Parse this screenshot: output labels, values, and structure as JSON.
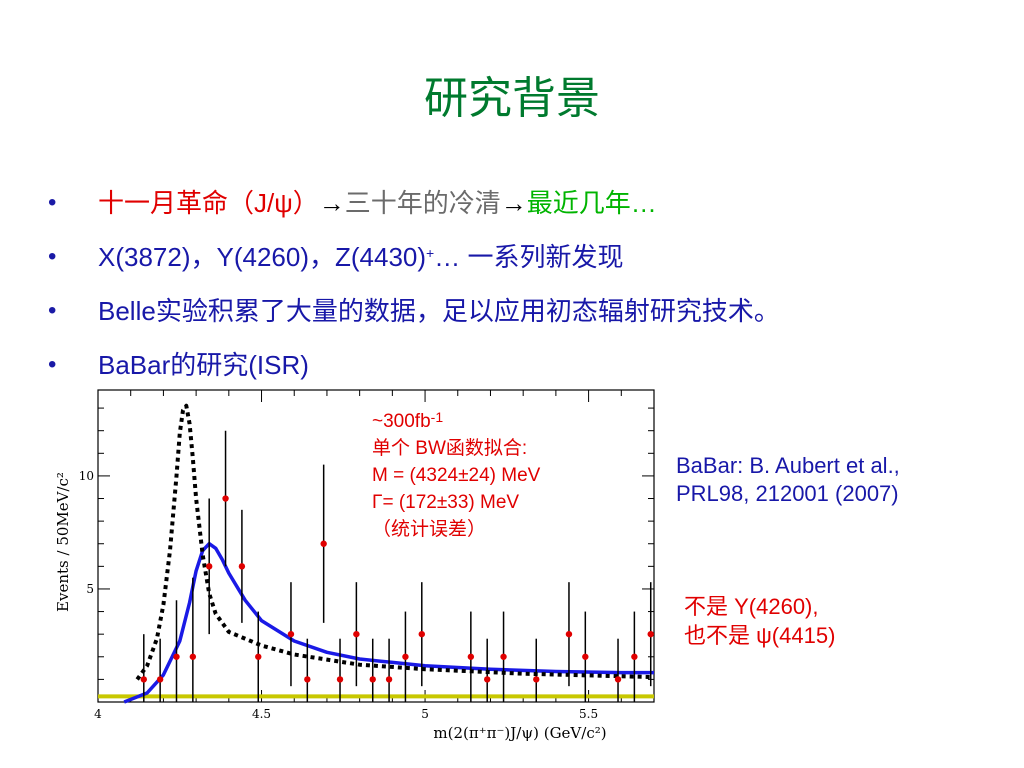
{
  "title": "研究背景",
  "bullets": [
    {
      "a": "十一月革命（J/ψ）",
      "arrow1": "→",
      "b": "三十年的冷清",
      "arrow2": "→",
      "c": "最近几年…"
    },
    {
      "a": "X(3872)，Y(4260)，Z(4430)",
      "sup": "+",
      "b": "… 一系列新发现"
    },
    {
      "a": "Belle",
      "b": "实验积累了大量的数据，足以应用初态辐射研究技术。"
    },
    {
      "a": "BaBar",
      "b": "的研究(ISR)"
    }
  ],
  "fit_note": {
    "lumi": "~300fb",
    "lumi_sup": "-1",
    "line1": "单个 BW函数拟合:",
    "line2": "M = (4324±24) MeV",
    "line3": "Γ= (172±33) MeV",
    "line4": "（统计误差）"
  },
  "reference": {
    "line1": "BaBar:  B. Aubert et al.,",
    "line2": "PRL98, 212001 (2007)"
  },
  "not_note": {
    "line1": "不是 Y(4260),",
    "line2": "也不是 ψ(4415)"
  },
  "colors": {
    "title": "#007a2e",
    "fit": "#1a1ae6",
    "points": "#e00000",
    "bkg": "#c8c800"
  },
  "chart_data": {
    "type": "scatter",
    "xlabel": "m(2(π⁺π⁻)J/ψ)  (GeV/c²)",
    "ylabel": "Events / 50MeV/c²",
    "xlim": [
      4.0,
      5.7
    ],
    "ylim": [
      0,
      13.8
    ],
    "x_ticks": [
      "4",
      "4.5",
      "5",
      "5.5"
    ],
    "y_ticks": [
      "5",
      "10"
    ],
    "points": [
      {
        "x": 4.14,
        "y": 1,
        "err": 2
      },
      {
        "x": 4.19,
        "y": 1,
        "err": 1.8
      },
      {
        "x": 4.24,
        "y": 2,
        "err": 2.5
      },
      {
        "x": 4.29,
        "y": 2,
        "err": 3.5
      },
      {
        "x": 4.34,
        "y": 6,
        "err": 3
      },
      {
        "x": 4.39,
        "y": 9,
        "err": 3
      },
      {
        "x": 4.44,
        "y": 6,
        "err": 2.5
      },
      {
        "x": 4.49,
        "y": 2,
        "err": 2
      },
      {
        "x": 4.59,
        "y": 3,
        "err": 2.3
      },
      {
        "x": 4.64,
        "y": 1,
        "err": 1.8
      },
      {
        "x": 4.69,
        "y": 7,
        "err": 3.5
      },
      {
        "x": 4.74,
        "y": 1,
        "err": 1.8
      },
      {
        "x": 4.79,
        "y": 3,
        "err": 2.3
      },
      {
        "x": 4.84,
        "y": 1,
        "err": 1.8
      },
      {
        "x": 4.89,
        "y": 1,
        "err": 1.8
      },
      {
        "x": 4.94,
        "y": 2,
        "err": 2
      },
      {
        "x": 4.99,
        "y": 3,
        "err": 2.3
      },
      {
        "x": 5.14,
        "y": 2,
        "err": 2
      },
      {
        "x": 5.19,
        "y": 1,
        "err": 1.8
      },
      {
        "x": 5.24,
        "y": 2,
        "err": 2
      },
      {
        "x": 5.34,
        "y": 1,
        "err": 1.8
      },
      {
        "x": 5.44,
        "y": 3,
        "err": 2.3
      },
      {
        "x": 5.49,
        "y": 2,
        "err": 2
      },
      {
        "x": 5.59,
        "y": 1,
        "err": 1.8
      },
      {
        "x": 5.64,
        "y": 2,
        "err": 2
      },
      {
        "x": 5.69,
        "y": 3,
        "err": 2.3
      }
    ],
    "curves": [
      {
        "style": "solid",
        "color": "#1a1ae6",
        "x": [
          4.08,
          4.15,
          4.2,
          4.25,
          4.28,
          4.3,
          4.32,
          4.34,
          4.36,
          4.38,
          4.4,
          4.45,
          4.5,
          4.6,
          4.7,
          4.8,
          4.9,
          5.0,
          5.2,
          5.4,
          5.6,
          5.7
        ],
        "y": [
          0.0,
          0.4,
          1.2,
          2.7,
          4.4,
          5.8,
          6.7,
          7.0,
          6.8,
          6.3,
          5.7,
          4.5,
          3.6,
          2.7,
          2.2,
          1.9,
          1.75,
          1.6,
          1.45,
          1.35,
          1.3,
          1.3
        ]
      },
      {
        "style": "dotted",
        "color": "#000000",
        "x": [
          4.12,
          4.15,
          4.18,
          4.2,
          4.22,
          4.24,
          4.25,
          4.26,
          4.27,
          4.28,
          4.29,
          4.3,
          4.32,
          4.34,
          4.36,
          4.4,
          4.5,
          4.6,
          4.8,
          5.0,
          5.3,
          5.7
        ],
        "y": [
          1.0,
          1.6,
          2.8,
          4.3,
          6.7,
          10.0,
          11.9,
          12.9,
          13.1,
          12.3,
          10.8,
          9.0,
          6.5,
          4.8,
          3.9,
          3.1,
          2.5,
          2.1,
          1.65,
          1.45,
          1.25,
          1.1
        ]
      }
    ],
    "background": {
      "color": "#c8c800",
      "x": [
        4.0,
        5.7
      ],
      "y": [
        0.25,
        0.25
      ]
    }
  }
}
